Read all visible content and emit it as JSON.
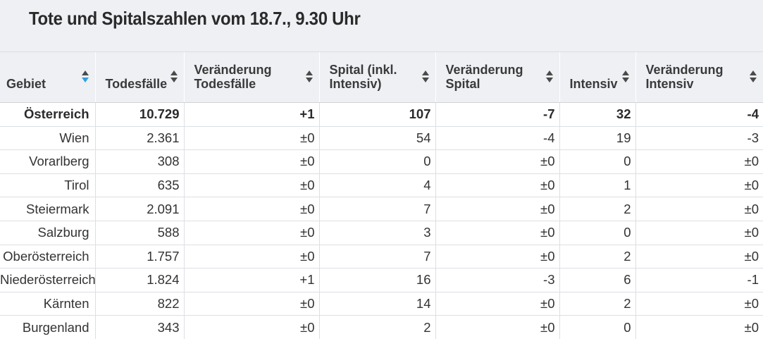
{
  "title": "Tote und Spitalszahlen vom 18.7., 9.30 Uhr",
  "columns": [
    {
      "label": "Gebiet",
      "name": "gebiet",
      "active": true
    },
    {
      "label": "Todesfälle",
      "name": "todesfaelle",
      "active": false
    },
    {
      "label": "Veränderung\nTodesfälle",
      "name": "veraenderung-todesfaelle",
      "active": false
    },
    {
      "label": "Spital (inkl.\nIntensiv)",
      "name": "spital",
      "active": false
    },
    {
      "label": "Veränderung\nSpital",
      "name": "veraenderung-spital",
      "active": false
    },
    {
      "label": "Intensiv",
      "name": "intensiv",
      "active": false
    },
    {
      "label": "Veränderung\nIntensiv",
      "name": "veraenderung-intensiv",
      "active": false
    }
  ],
  "rows": [
    [
      "Österreich",
      "10.729",
      "+1",
      "107",
      "-7",
      "32",
      "-4"
    ],
    [
      "Wien",
      "2.361",
      "±0",
      "54",
      "-4",
      "19",
      "-3"
    ],
    [
      "Vorarlberg",
      "308",
      "±0",
      "0",
      "±0",
      "0",
      "±0"
    ],
    [
      "Tirol",
      "635",
      "±0",
      "4",
      "±0",
      "1",
      "±0"
    ],
    [
      "Steiermark",
      "2.091",
      "±0",
      "7",
      "±0",
      "2",
      "±0"
    ],
    [
      "Salzburg",
      "588",
      "±0",
      "3",
      "±0",
      "0",
      "±0"
    ],
    [
      "Oberösterreich",
      "1.757",
      "±0",
      "7",
      "±0",
      "2",
      "±0"
    ],
    [
      "Niederösterreich",
      "1.824",
      "+1",
      "16",
      "-3",
      "6",
      "-1"
    ],
    [
      "Kärnten",
      "822",
      "±0",
      "14",
      "±0",
      "2",
      "±0"
    ],
    [
      "Burgenland",
      "343",
      "±0",
      "2",
      "±0",
      "0",
      "±0"
    ]
  ],
  "icons": {
    "sort": "sort-arrows-icon"
  },
  "colors": {
    "header_bg": "#eef0f4",
    "active_sort": "#2e9fe0"
  }
}
